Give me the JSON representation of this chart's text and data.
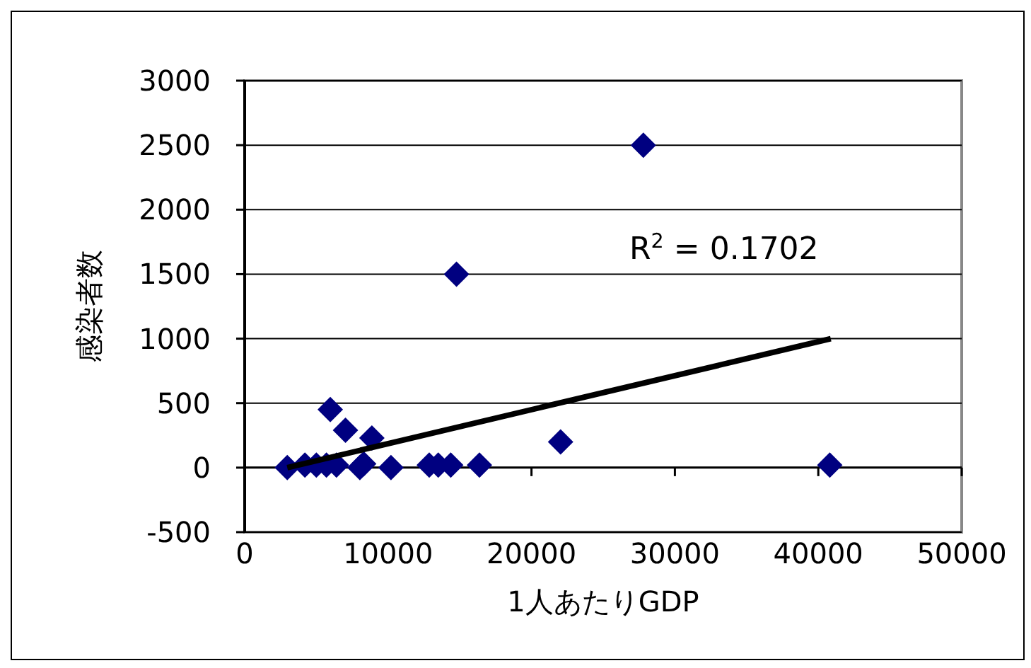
{
  "chart_data": {
    "type": "scatter",
    "xlabel": "1人あたりGDP",
    "ylabel": "感染者数",
    "xlim": [
      0,
      50000
    ],
    "xticks": [
      0,
      10000,
      20000,
      30000,
      40000,
      50000
    ],
    "ylim": [
      -500,
      3000
    ],
    "yticks": [
      -500,
      0,
      500,
      1000,
      1500,
      2000,
      2500,
      3000
    ],
    "grid": "y",
    "marker": "diamond",
    "annotations": [
      "R$^{2}$ = 0.1702"
    ],
    "series": [
      {
        "color": "#000080",
        "x": [
          2970,
          4200,
          5000,
          5700,
          6400,
          5970,
          7030,
          8870,
          8030,
          8300,
          10200,
          12870,
          13500,
          14370,
          16370,
          22030,
          40800,
          14770,
          27800
        ],
        "values": [
          0,
          20,
          20,
          20,
          20,
          450,
          290,
          230,
          0,
          30,
          0,
          20,
          20,
          20,
          20,
          200,
          20,
          1500,
          2500
        ]
      },
      {
        "type": "line",
        "color": "#000000",
        "marker": "none",
        "x": [
          2970,
          40870
        ],
        "values": [
          0,
          1000
        ]
      }
    ]
  }
}
